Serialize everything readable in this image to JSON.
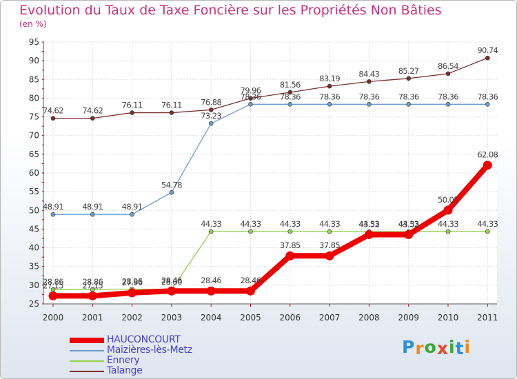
{
  "page": {
    "title": "Evolution du Taux de Taxe Foncière sur les Propriétés Non Bâties",
    "subtitle": "(en %)"
  },
  "logo": {
    "letters": [
      "P",
      "r",
      "o",
      "x",
      "i",
      "t",
      "i"
    ],
    "colors": [
      "#2f8fd8",
      "#f08a1a",
      "#3aa83a",
      "#e8482a",
      "#3aa83a",
      "#2f8fd8",
      "#f08a1a"
    ]
  },
  "chart_data": {
    "type": "line",
    "title": "Evolution du Taux de Taxe Foncière sur les Propriétés Non Bâties",
    "ylabel": "(en %)",
    "xlabel": "",
    "categories": [
      "2000",
      "2001",
      "2002",
      "2003",
      "2004",
      "2005",
      "2006",
      "2007",
      "2008",
      "2009",
      "2010",
      "2011"
    ],
    "ylim": [
      25,
      95
    ],
    "yticks": [
      25,
      30,
      35,
      40,
      45,
      50,
      55,
      60,
      65,
      70,
      75,
      80,
      85,
      90,
      95
    ],
    "grid": true,
    "series": [
      {
        "name": "Talange",
        "color": "#7a2f2f",
        "values": [
          74.62,
          74.62,
          76.11,
          76.11,
          76.88,
          79.96,
          81.56,
          83.19,
          84.43,
          85.27,
          86.54,
          90.74
        ],
        "labels": [
          "74.62",
          "74.62",
          "76.11",
          "76.11",
          "76.88",
          "79.96",
          "81.56",
          "83.19",
          "84.43",
          "85.27",
          "86.54",
          "90.74"
        ]
      },
      {
        "name": "Maizières-lès-Metz",
        "color": "#6b9ccf",
        "values": [
          48.91,
          48.91,
          48.91,
          54.78,
          73.23,
          78.36,
          78.36,
          78.36,
          78.36,
          78.36,
          78.36,
          78.36
        ],
        "labels": [
          "48.91",
          "48.91",
          "48.91",
          "54.78",
          "73.23",
          "78.36",
          "78.36",
          "78.36",
          "78.36",
          "78.36",
          "78.36",
          "78.36"
        ]
      },
      {
        "name": "Ennery",
        "color": "#92d050",
        "values": [
          28.86,
          28.86,
          28.96,
          28.86,
          44.33,
          44.33,
          44.33,
          44.33,
          44.33,
          44.33,
          44.33,
          44.33
        ],
        "labels": [
          "28.86",
          "28.86",
          "28.96",
          "28.86",
          "44.33",
          "44.33",
          "44.33",
          "44.33",
          "44.33",
          "44.33",
          "44.33",
          "44.33"
        ]
      },
      {
        "name": "HAUCONCOURT",
        "color": "#ee0000",
        "values": [
          27.15,
          27.15,
          27.96,
          28.46,
          28.46,
          28.46,
          37.85,
          37.85,
          43.52,
          43.52,
          50.05,
          62.08
        ],
        "labels": [
          "27.15",
          "27.15",
          "27.96",
          "28.46",
          "28.46",
          "28.46",
          "37.85",
          "37.85",
          "43.52",
          "43.52",
          "50.05",
          "62.08"
        ]
      }
    ],
    "legend": [
      "HAUCONCOURT",
      "Maizières-lès-Metz",
      "Ennery",
      "Talange"
    ],
    "legend_position": "bottom-left"
  }
}
